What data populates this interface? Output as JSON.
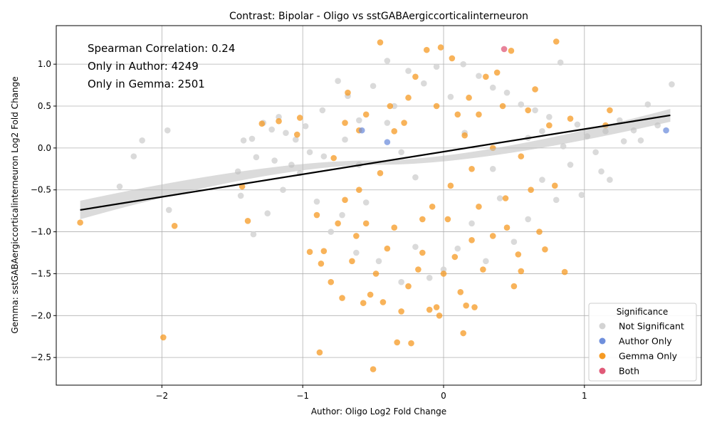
{
  "chart_data": {
    "type": "scatter",
    "title": "Contrast: Bipolar - Oligo vs sstGABAergiccorticalinterneuron",
    "xlabel": "Author: Oligo Log2 Fold Change",
    "ylabel": "Gemma: sstGABAergiccorticalinterneuron Log2 Fold Change",
    "xlim": [
      -2.75,
      1.83
    ],
    "ylim": [
      -2.83,
      1.46
    ],
    "x_ticks": [
      -2,
      -1,
      0,
      1
    ],
    "x_tick_labels": [
      "−2",
      "−1",
      "0",
      "1"
    ],
    "y_ticks": [
      -2.5,
      -2.0,
      -1.5,
      -1.0,
      -0.5,
      0.0,
      0.5,
      1.0
    ],
    "y_tick_labels": [
      "−2.5",
      "−2.0",
      "−1.5",
      "−1.0",
      "−0.5",
      "0.0",
      "0.5",
      "1.0"
    ],
    "grid": true,
    "annotations": [
      "Spearman Correlation: 0.24",
      "Only in Author: 4249",
      "Only in Gemma: 2501"
    ],
    "regression_line": {
      "x": [
        -2.58,
        1.61
      ],
      "y": [
        -0.74,
        0.39
      ]
    },
    "legend": {
      "title": "Significance",
      "placement": "lower-right",
      "entries": [
        {
          "name": "Not Significant",
          "color": "#d3d3d3"
        },
        {
          "name": "Author Only",
          "color": "#6f8fdc"
        },
        {
          "name": "Gemma Only",
          "color": "#f59a23"
        },
        {
          "name": "Both",
          "color": "#e05a78"
        }
      ]
    },
    "series": [
      {
        "name": "Not Significant",
        "color": "#d3d3d3",
        "points": [
          [
            -2.3,
            -0.46
          ],
          [
            -2.2,
            -0.1
          ],
          [
            -2.14,
            0.09
          ],
          [
            -1.96,
            0.21
          ],
          [
            -1.95,
            -0.74
          ],
          [
            -1.46,
            -0.28
          ],
          [
            -1.44,
            -0.57
          ],
          [
            -1.42,
            0.09
          ],
          [
            -1.36,
            0.11
          ],
          [
            -1.35,
            -1.03
          ],
          [
            -1.33,
            -0.11
          ],
          [
            -1.28,
            0.3
          ],
          [
            -1.25,
            -0.78
          ],
          [
            -1.22,
            0.22
          ],
          [
            -1.2,
            -0.15
          ],
          [
            -1.17,
            0.37
          ],
          [
            -1.14,
            -0.5
          ],
          [
            -1.12,
            0.18
          ],
          [
            -1.08,
            -0.2
          ],
          [
            -1.05,
            0.1
          ],
          [
            -1.02,
            -0.3
          ],
          [
            -0.98,
            0.26
          ],
          [
            -0.95,
            -0.05
          ],
          [
            -0.9,
            -0.64
          ],
          [
            -0.86,
            0.45
          ],
          [
            -0.8,
            -1.0
          ],
          [
            -0.75,
            0.8
          ],
          [
            -0.72,
            -0.8
          ],
          [
            -0.68,
            0.62
          ],
          [
            -0.62,
            -1.25
          ],
          [
            -0.6,
            0.33
          ],
          [
            -0.55,
            -0.65
          ],
          [
            -0.5,
            0.74
          ],
          [
            -0.46,
            -1.35
          ],
          [
            -0.4,
            1.04
          ],
          [
            -0.35,
            0.5
          ],
          [
            -0.3,
            -1.6
          ],
          [
            -0.25,
            0.92
          ],
          [
            -0.2,
            -1.18
          ],
          [
            -0.14,
            0.77
          ],
          [
            -0.1,
            -1.55
          ],
          [
            -0.05,
            0.97
          ],
          [
            0.0,
            -1.45
          ],
          [
            0.05,
            0.61
          ],
          [
            0.1,
            -1.2
          ],
          [
            0.14,
            1.0
          ],
          [
            0.2,
            -0.9
          ],
          [
            0.25,
            0.86
          ],
          [
            0.3,
            -1.35
          ],
          [
            0.35,
            0.72
          ],
          [
            0.4,
            -0.6
          ],
          [
            0.45,
            0.66
          ],
          [
            0.5,
            -1.12
          ],
          [
            0.55,
            0.52
          ],
          [
            0.6,
            -0.85
          ],
          [
            0.65,
            0.45
          ],
          [
            0.7,
            -0.38
          ],
          [
            0.75,
            0.37
          ],
          [
            0.8,
            -0.62
          ],
          [
            0.83,
            1.02
          ],
          [
            0.85,
            0.02
          ],
          [
            0.9,
            -0.2
          ],
          [
            0.95,
            0.28
          ],
          [
            0.98,
            -0.56
          ],
          [
            1.02,
            0.14
          ],
          [
            1.08,
            -0.05
          ],
          [
            1.12,
            -0.28
          ],
          [
            1.15,
            0.2
          ],
          [
            1.18,
            -0.38
          ],
          [
            1.25,
            0.33
          ],
          [
            1.28,
            0.08
          ],
          [
            1.35,
            0.21
          ],
          [
            1.4,
            0.09
          ],
          [
            1.45,
            0.52
          ],
          [
            1.52,
            0.27
          ],
          [
            1.62,
            0.76
          ],
          [
            -0.7,
            0.1
          ],
          [
            -0.6,
            -0.2
          ],
          [
            -0.4,
            0.3
          ],
          [
            -0.2,
            -0.35
          ],
          [
            0.15,
            0.18
          ],
          [
            0.35,
            -0.25
          ],
          [
            0.6,
            0.12
          ],
          [
            -0.85,
            -0.1
          ],
          [
            0.7,
            0.2
          ],
          [
            -0.3,
            -0.05
          ]
        ]
      },
      {
        "name": "Author Only",
        "color": "#6f8fdc",
        "points": [
          [
            -0.58,
            0.21
          ],
          [
            -0.4,
            0.07
          ],
          [
            1.58,
            0.21
          ]
        ]
      },
      {
        "name": "Gemma Only",
        "color": "#f59a23",
        "points": [
          [
            -2.58,
            -0.89
          ],
          [
            -1.99,
            -2.26
          ],
          [
            -1.91,
            -0.93
          ],
          [
            -1.43,
            -0.46
          ],
          [
            -1.39,
            -0.87
          ],
          [
            -1.29,
            0.29
          ],
          [
            -1.17,
            0.32
          ],
          [
            -1.04,
            0.16
          ],
          [
            -1.02,
            0.36
          ],
          [
            -0.95,
            -1.24
          ],
          [
            -0.9,
            -0.8
          ],
          [
            -0.88,
            -2.44
          ],
          [
            -0.87,
            -1.38
          ],
          [
            -0.85,
            -1.23
          ],
          [
            -0.8,
            -1.6
          ],
          [
            -0.78,
            -0.12
          ],
          [
            -0.75,
            -0.9
          ],
          [
            -0.72,
            -1.79
          ],
          [
            -0.7,
            -0.62
          ],
          [
            -0.68,
            0.66
          ],
          [
            -0.65,
            -1.35
          ],
          [
            -0.62,
            -1.05
          ],
          [
            -0.6,
            0.21
          ],
          [
            -0.57,
            -1.85
          ],
          [
            -0.55,
            0.4
          ],
          [
            -0.52,
            -1.75
          ],
          [
            -0.5,
            -2.64
          ],
          [
            -0.48,
            -1.5
          ],
          [
            -0.45,
            1.26
          ],
          [
            -0.43,
            -1.84
          ],
          [
            -0.4,
            -1.2
          ],
          [
            -0.38,
            0.5
          ],
          [
            -0.35,
            -0.95
          ],
          [
            -0.33,
            -2.32
          ],
          [
            -0.3,
            -1.95
          ],
          [
            -0.28,
            0.3
          ],
          [
            -0.25,
            -1.65
          ],
          [
            -0.23,
            -2.33
          ],
          [
            -0.2,
            0.85
          ],
          [
            -0.18,
            -1.45
          ],
          [
            -0.15,
            -1.25
          ],
          [
            -0.12,
            1.17
          ],
          [
            -0.1,
            -1.93
          ],
          [
            -0.08,
            -0.7
          ],
          [
            -0.05,
            -1.9
          ],
          [
            -0.03,
            -2.0
          ],
          [
            -0.02,
            1.2
          ],
          [
            0.0,
            -1.5
          ],
          [
            0.03,
            -0.85
          ],
          [
            0.06,
            1.07
          ],
          [
            0.08,
            -1.3
          ],
          [
            0.1,
            0.4
          ],
          [
            0.12,
            -1.72
          ],
          [
            0.14,
            -2.21
          ],
          [
            0.16,
            -1.88
          ],
          [
            0.18,
            0.6
          ],
          [
            0.2,
            -1.1
          ],
          [
            0.22,
            -1.9
          ],
          [
            0.25,
            -0.7
          ],
          [
            0.28,
            -1.45
          ],
          [
            0.3,
            0.85
          ],
          [
            0.35,
            -1.05
          ],
          [
            0.38,
            0.9
          ],
          [
            0.42,
            0.5
          ],
          [
            0.44,
            -0.6
          ],
          [
            0.48,
            1.16
          ],
          [
            0.5,
            -1.65
          ],
          [
            0.53,
            -1.27
          ],
          [
            0.55,
            -1.47
          ],
          [
            0.6,
            0.45
          ],
          [
            0.62,
            -0.5
          ],
          [
            0.65,
            0.7
          ],
          [
            0.68,
            -1.0
          ],
          [
            0.72,
            -1.21
          ],
          [
            0.75,
            0.27
          ],
          [
            0.79,
            -0.45
          ],
          [
            0.8,
            1.27
          ],
          [
            0.86,
            -1.48
          ],
          [
            0.9,
            0.35
          ],
          [
            1.18,
            0.45
          ],
          [
            1.15,
            0.27
          ],
          [
            0.35,
            0.0
          ],
          [
            -0.7,
            0.3
          ],
          [
            -0.45,
            -0.3
          ],
          [
            -0.25,
            0.6
          ],
          [
            0.05,
            -0.45
          ],
          [
            0.25,
            0.4
          ],
          [
            -0.15,
            -0.85
          ],
          [
            0.55,
            -0.1
          ],
          [
            -0.6,
            -0.5
          ],
          [
            0.15,
            0.15
          ],
          [
            -0.35,
            0.2
          ],
          [
            0.45,
            -0.95
          ],
          [
            -0.05,
            0.5
          ],
          [
            0.2,
            -0.25
          ],
          [
            -0.55,
            -0.9
          ]
        ]
      },
      {
        "name": "Both",
        "color": "#e05a78",
        "points": [
          [
            0.43,
            1.18
          ]
        ]
      }
    ]
  }
}
